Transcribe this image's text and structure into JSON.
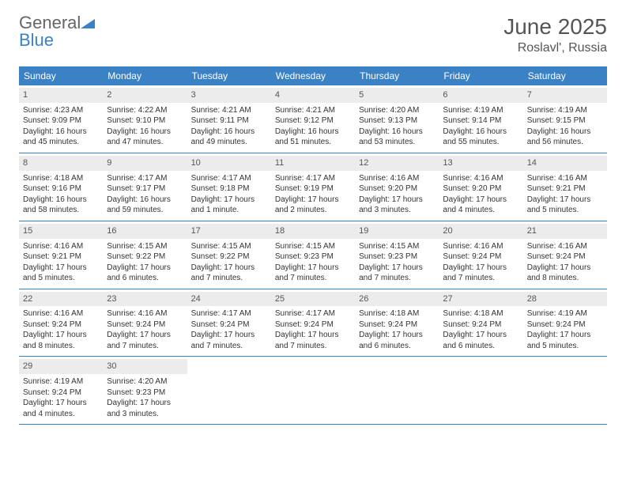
{
  "logo": {
    "word1": "General",
    "word2": "Blue"
  },
  "title": "June 2025",
  "location": "Roslavl', Russia",
  "colors": {
    "header_bg": "#3b82c4",
    "header_text": "#ffffff",
    "daynum_bg": "#ececec",
    "border": "#3b82c4",
    "body_text": "#333333",
    "title_text": "#555555",
    "logo_gray": "#666666",
    "logo_blue": "#3b82c4",
    "page_bg": "#ffffff"
  },
  "typography": {
    "title_fontsize": 28,
    "location_fontsize": 16,
    "weekday_fontsize": 12,
    "daynum_fontsize": 11,
    "body_fontsize": 10,
    "logo_fontsize": 22
  },
  "weekdays": [
    "Sunday",
    "Monday",
    "Tuesday",
    "Wednesday",
    "Thursday",
    "Friday",
    "Saturday"
  ],
  "weeks": [
    [
      {
        "n": "1",
        "sunrise": "Sunrise: 4:23 AM",
        "sunset": "Sunset: 9:09 PM",
        "da": "Daylight: 16 hours",
        "db": "and 45 minutes."
      },
      {
        "n": "2",
        "sunrise": "Sunrise: 4:22 AM",
        "sunset": "Sunset: 9:10 PM",
        "da": "Daylight: 16 hours",
        "db": "and 47 minutes."
      },
      {
        "n": "3",
        "sunrise": "Sunrise: 4:21 AM",
        "sunset": "Sunset: 9:11 PM",
        "da": "Daylight: 16 hours",
        "db": "and 49 minutes."
      },
      {
        "n": "4",
        "sunrise": "Sunrise: 4:21 AM",
        "sunset": "Sunset: 9:12 PM",
        "da": "Daylight: 16 hours",
        "db": "and 51 minutes."
      },
      {
        "n": "5",
        "sunrise": "Sunrise: 4:20 AM",
        "sunset": "Sunset: 9:13 PM",
        "da": "Daylight: 16 hours",
        "db": "and 53 minutes."
      },
      {
        "n": "6",
        "sunrise": "Sunrise: 4:19 AM",
        "sunset": "Sunset: 9:14 PM",
        "da": "Daylight: 16 hours",
        "db": "and 55 minutes."
      },
      {
        "n": "7",
        "sunrise": "Sunrise: 4:19 AM",
        "sunset": "Sunset: 9:15 PM",
        "da": "Daylight: 16 hours",
        "db": "and 56 minutes."
      }
    ],
    [
      {
        "n": "8",
        "sunrise": "Sunrise: 4:18 AM",
        "sunset": "Sunset: 9:16 PM",
        "da": "Daylight: 16 hours",
        "db": "and 58 minutes."
      },
      {
        "n": "9",
        "sunrise": "Sunrise: 4:17 AM",
        "sunset": "Sunset: 9:17 PM",
        "da": "Daylight: 16 hours",
        "db": "and 59 minutes."
      },
      {
        "n": "10",
        "sunrise": "Sunrise: 4:17 AM",
        "sunset": "Sunset: 9:18 PM",
        "da": "Daylight: 17 hours",
        "db": "and 1 minute."
      },
      {
        "n": "11",
        "sunrise": "Sunrise: 4:17 AM",
        "sunset": "Sunset: 9:19 PM",
        "da": "Daylight: 17 hours",
        "db": "and 2 minutes."
      },
      {
        "n": "12",
        "sunrise": "Sunrise: 4:16 AM",
        "sunset": "Sunset: 9:20 PM",
        "da": "Daylight: 17 hours",
        "db": "and 3 minutes."
      },
      {
        "n": "13",
        "sunrise": "Sunrise: 4:16 AM",
        "sunset": "Sunset: 9:20 PM",
        "da": "Daylight: 17 hours",
        "db": "and 4 minutes."
      },
      {
        "n": "14",
        "sunrise": "Sunrise: 4:16 AM",
        "sunset": "Sunset: 9:21 PM",
        "da": "Daylight: 17 hours",
        "db": "and 5 minutes."
      }
    ],
    [
      {
        "n": "15",
        "sunrise": "Sunrise: 4:16 AM",
        "sunset": "Sunset: 9:21 PM",
        "da": "Daylight: 17 hours",
        "db": "and 5 minutes."
      },
      {
        "n": "16",
        "sunrise": "Sunrise: 4:15 AM",
        "sunset": "Sunset: 9:22 PM",
        "da": "Daylight: 17 hours",
        "db": "and 6 minutes."
      },
      {
        "n": "17",
        "sunrise": "Sunrise: 4:15 AM",
        "sunset": "Sunset: 9:22 PM",
        "da": "Daylight: 17 hours",
        "db": "and 7 minutes."
      },
      {
        "n": "18",
        "sunrise": "Sunrise: 4:15 AM",
        "sunset": "Sunset: 9:23 PM",
        "da": "Daylight: 17 hours",
        "db": "and 7 minutes."
      },
      {
        "n": "19",
        "sunrise": "Sunrise: 4:15 AM",
        "sunset": "Sunset: 9:23 PM",
        "da": "Daylight: 17 hours",
        "db": "and 7 minutes."
      },
      {
        "n": "20",
        "sunrise": "Sunrise: 4:16 AM",
        "sunset": "Sunset: 9:24 PM",
        "da": "Daylight: 17 hours",
        "db": "and 7 minutes."
      },
      {
        "n": "21",
        "sunrise": "Sunrise: 4:16 AM",
        "sunset": "Sunset: 9:24 PM",
        "da": "Daylight: 17 hours",
        "db": "and 8 minutes."
      }
    ],
    [
      {
        "n": "22",
        "sunrise": "Sunrise: 4:16 AM",
        "sunset": "Sunset: 9:24 PM",
        "da": "Daylight: 17 hours",
        "db": "and 8 minutes."
      },
      {
        "n": "23",
        "sunrise": "Sunrise: 4:16 AM",
        "sunset": "Sunset: 9:24 PM",
        "da": "Daylight: 17 hours",
        "db": "and 7 minutes."
      },
      {
        "n": "24",
        "sunrise": "Sunrise: 4:17 AM",
        "sunset": "Sunset: 9:24 PM",
        "da": "Daylight: 17 hours",
        "db": "and 7 minutes."
      },
      {
        "n": "25",
        "sunrise": "Sunrise: 4:17 AM",
        "sunset": "Sunset: 9:24 PM",
        "da": "Daylight: 17 hours",
        "db": "and 7 minutes."
      },
      {
        "n": "26",
        "sunrise": "Sunrise: 4:18 AM",
        "sunset": "Sunset: 9:24 PM",
        "da": "Daylight: 17 hours",
        "db": "and 6 minutes."
      },
      {
        "n": "27",
        "sunrise": "Sunrise: 4:18 AM",
        "sunset": "Sunset: 9:24 PM",
        "da": "Daylight: 17 hours",
        "db": "and 6 minutes."
      },
      {
        "n": "28",
        "sunrise": "Sunrise: 4:19 AM",
        "sunset": "Sunset: 9:24 PM",
        "da": "Daylight: 17 hours",
        "db": "and 5 minutes."
      }
    ],
    [
      {
        "n": "29",
        "sunrise": "Sunrise: 4:19 AM",
        "sunset": "Sunset: 9:24 PM",
        "da": "Daylight: 17 hours",
        "db": "and 4 minutes."
      },
      {
        "n": "30",
        "sunrise": "Sunrise: 4:20 AM",
        "sunset": "Sunset: 9:23 PM",
        "da": "Daylight: 17 hours",
        "db": "and 3 minutes."
      },
      null,
      null,
      null,
      null,
      null
    ]
  ]
}
